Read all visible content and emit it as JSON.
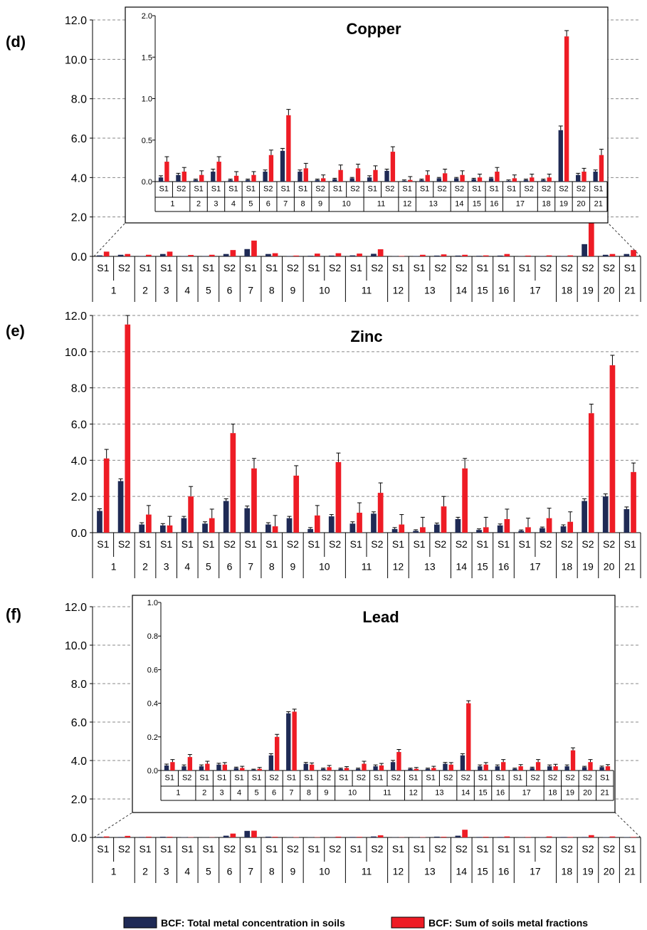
{
  "legend": {
    "total": "BCF: Total metal concentration in soils",
    "sum": "BCF: Sum of soils metal fractions"
  },
  "colors": {
    "total": "#1f2a55",
    "sum": "#ee1c25"
  },
  "chart_data": [
    {
      "panel": "(d)",
      "title": "Copper",
      "type": "bar",
      "ylim": [
        0,
        12
      ],
      "yticks": [
        "0.0",
        "2.0",
        "4.0",
        "6.0",
        "8.0",
        "10.0",
        "12.0"
      ],
      "samples": [
        "S1",
        "S2",
        "S1",
        "S1",
        "S1",
        "S1",
        "S2",
        "S1",
        "S1",
        "S2",
        "S1",
        "S2",
        "S1",
        "S2",
        "S1",
        "S1",
        "S2",
        "S2",
        "S1",
        "S1",
        "S1",
        "S2",
        "S2",
        "S2",
        "S2",
        "S1"
      ],
      "groups": [
        {
          "label": "1",
          "span": 2
        },
        {
          "label": "2",
          "span": 1
        },
        {
          "label": "3",
          "span": 1
        },
        {
          "label": "4",
          "span": 1
        },
        {
          "label": "5",
          "span": 1
        },
        {
          "label": "6",
          "span": 1
        },
        {
          "label": "7",
          "span": 1
        },
        {
          "label": "8",
          "span": 1
        },
        {
          "label": "9",
          "span": 1
        },
        {
          "label": "10",
          "span": 2
        },
        {
          "label": "11",
          "span": 2
        },
        {
          "label": "12",
          "span": 1
        },
        {
          "label": "13",
          "span": 2
        },
        {
          "label": "14",
          "span": 1
        },
        {
          "label": "15",
          "span": 1
        },
        {
          "label": "16",
          "span": 1
        },
        {
          "label": "17",
          "span": 2
        },
        {
          "label": "18",
          "span": 1
        },
        {
          "label": "19",
          "span": 1
        },
        {
          "label": "20",
          "span": 1
        },
        {
          "label": "21",
          "span": 1
        }
      ],
      "series": [
        {
          "name": "BCF: Total metal concentration in soils",
          "values": [
            0.05,
            0.08,
            0.02,
            0.12,
            0.02,
            0.02,
            0.12,
            0.37,
            0.12,
            0.02,
            0.03,
            0.04,
            0.05,
            0.13,
            0.01,
            0.02,
            0.04,
            0.04,
            0.03,
            0.04,
            0.01,
            0.02,
            0.02,
            0.62,
            0.08,
            0.12
          ],
          "err": [
            0.02,
            0.02,
            0.01,
            0.03,
            0.01,
            0.01,
            0.02,
            0.03,
            0.02,
            0.01,
            0.01,
            0.01,
            0.02,
            0.02,
            0.01,
            0.01,
            0.01,
            0.01,
            0.01,
            0.01,
            0.01,
            0.01,
            0.01,
            0.05,
            0.02,
            0.02
          ]
        },
        {
          "name": "BCF: Sum of soils metal fractions",
          "values": [
            0.24,
            0.12,
            0.08,
            0.24,
            0.07,
            0.08,
            0.32,
            0.8,
            0.16,
            0.04,
            0.14,
            0.16,
            0.14,
            0.36,
            0.02,
            0.08,
            0.1,
            0.08,
            0.05,
            0.12,
            0.04,
            0.05,
            0.05,
            1.75,
            0.12,
            0.32
          ],
          "err": [
            0.06,
            0.05,
            0.05,
            0.06,
            0.05,
            0.04,
            0.06,
            0.07,
            0.06,
            0.04,
            0.06,
            0.05,
            0.05,
            0.06,
            0.04,
            0.05,
            0.05,
            0.05,
            0.04,
            0.05,
            0.04,
            0.04,
            0.04,
            0.07,
            0.04,
            0.07
          ]
        }
      ],
      "inset": {
        "ylim": [
          0,
          2
        ],
        "yticks": [
          "0.0",
          "0.5",
          "1.0",
          "1.5",
          "2.0"
        ]
      }
    },
    {
      "panel": "(e)",
      "title": "Zinc",
      "type": "bar",
      "ylim": [
        0,
        12
      ],
      "yticks": [
        "0.0",
        "2.0",
        "4.0",
        "6.0",
        "8.0",
        "10.0",
        "12.0"
      ],
      "samples": [
        "S1",
        "S2",
        "S1",
        "S1",
        "S1",
        "S1",
        "S2",
        "S1",
        "S1",
        "S2",
        "S1",
        "S2",
        "S1",
        "S2",
        "S1",
        "S1",
        "S2",
        "S2",
        "S1",
        "S1",
        "S1",
        "S2",
        "S2",
        "S2",
        "S2",
        "S1"
      ],
      "groups": [
        {
          "label": "1",
          "span": 2
        },
        {
          "label": "2",
          "span": 1
        },
        {
          "label": "3",
          "span": 1
        },
        {
          "label": "4",
          "span": 1
        },
        {
          "label": "5",
          "span": 1
        },
        {
          "label": "6",
          "span": 1
        },
        {
          "label": "7",
          "span": 1
        },
        {
          "label": "8",
          "span": 1
        },
        {
          "label": "9",
          "span": 1
        },
        {
          "label": "10",
          "span": 2
        },
        {
          "label": "11",
          "span": 2
        },
        {
          "label": "12",
          "span": 1
        },
        {
          "label": "13",
          "span": 2
        },
        {
          "label": "14",
          "span": 1
        },
        {
          "label": "15",
          "span": 1
        },
        {
          "label": "16",
          "span": 1
        },
        {
          "label": "17",
          "span": 2
        },
        {
          "label": "18",
          "span": 1
        },
        {
          "label": "19",
          "span": 1
        },
        {
          "label": "20",
          "span": 1
        },
        {
          "label": "21",
          "span": 1
        }
      ],
      "series": [
        {
          "name": "BCF: Total metal concentration in soils",
          "values": [
            1.2,
            2.85,
            0.45,
            0.4,
            0.8,
            0.5,
            1.75,
            1.35,
            0.45,
            0.8,
            0.2,
            0.9,
            0.5,
            1.05,
            0.2,
            0.1,
            0.45,
            0.75,
            0.15,
            0.4,
            0.1,
            0.25,
            0.35,
            1.75,
            2.0,
            1.3
          ],
          "err": [
            0.12,
            0.12,
            0.1,
            0.1,
            0.1,
            0.1,
            0.12,
            0.12,
            0.1,
            0.1,
            0.08,
            0.1,
            0.1,
            0.1,
            0.08,
            0.06,
            0.08,
            0.1,
            0.06,
            0.08,
            0.05,
            0.06,
            0.08,
            0.12,
            0.14,
            0.12
          ]
        },
        {
          "name": "BCF: Sum of soils metal fractions",
          "values": [
            4.1,
            11.5,
            1.0,
            0.4,
            2.0,
            0.8,
            5.5,
            3.55,
            0.35,
            3.15,
            0.95,
            3.9,
            1.1,
            2.2,
            0.45,
            0.3,
            1.45,
            3.55,
            0.3,
            0.75,
            0.3,
            0.8,
            0.6,
            6.6,
            9.25,
            3.35
          ],
          "err": [
            0.5,
            0.5,
            0.5,
            0.5,
            0.55,
            0.5,
            0.5,
            0.55,
            0.6,
            0.55,
            0.55,
            0.5,
            0.55,
            0.55,
            0.55,
            0.55,
            0.55,
            0.55,
            0.55,
            0.55,
            0.5,
            0.55,
            0.55,
            0.5,
            0.55,
            0.5
          ]
        }
      ]
    },
    {
      "panel": "(f)",
      "title": "Lead",
      "type": "bar",
      "ylim": [
        0,
        12
      ],
      "yticks": [
        "0.0",
        "2.0",
        "4.0",
        "6.0",
        "8.0",
        "10.0",
        "12.0"
      ],
      "samples": [
        "S1",
        "S2",
        "S1",
        "S1",
        "S1",
        "S1",
        "S2",
        "S1",
        "S1",
        "S2",
        "S1",
        "S2",
        "S1",
        "S2",
        "S1",
        "S1",
        "S2",
        "S2",
        "S1",
        "S1",
        "S1",
        "S2",
        "S2",
        "S2",
        "S2",
        "S1"
      ],
      "groups": [
        {
          "label": "1",
          "span": 2
        },
        {
          "label": "2",
          "span": 1
        },
        {
          "label": "3",
          "span": 1
        },
        {
          "label": "4",
          "span": 1
        },
        {
          "label": "5",
          "span": 1
        },
        {
          "label": "6",
          "span": 1
        },
        {
          "label": "7",
          "span": 1
        },
        {
          "label": "8",
          "span": 1
        },
        {
          "label": "9",
          "span": 1
        },
        {
          "label": "10",
          "span": 2
        },
        {
          "label": "11",
          "span": 2
        },
        {
          "label": "12",
          "span": 1
        },
        {
          "label": "13",
          "span": 2
        },
        {
          "label": "14",
          "span": 1
        },
        {
          "label": "15",
          "span": 1
        },
        {
          "label": "16",
          "span": 1
        },
        {
          "label": "17",
          "span": 2
        },
        {
          "label": "18",
          "span": 1
        },
        {
          "label": "19",
          "span": 1
        },
        {
          "label": "20",
          "span": 1
        },
        {
          "label": "21",
          "span": 1
        }
      ],
      "series": [
        {
          "name": "BCF: Total metal concentration in soils",
          "values": [
            0.03,
            0.025,
            0.025,
            0.035,
            0.015,
            0.005,
            0.09,
            0.34,
            0.04,
            0.01,
            0.01,
            0.01,
            0.025,
            0.05,
            0.01,
            0.01,
            0.04,
            0.09,
            0.025,
            0.025,
            0.01,
            0.015,
            0.025,
            0.025,
            0.02,
            0.02
          ],
          "err": [
            0.008,
            0.008,
            0.008,
            0.008,
            0.005,
            0.003,
            0.01,
            0.01,
            0.008,
            0.004,
            0.004,
            0.004,
            0.008,
            0.01,
            0.004,
            0.004,
            0.008,
            0.01,
            0.008,
            0.008,
            0.004,
            0.005,
            0.008,
            0.008,
            0.005,
            0.006
          ]
        },
        {
          "name": "BCF: Sum of soils metal fractions",
          "values": [
            0.05,
            0.08,
            0.04,
            0.035,
            0.015,
            0.01,
            0.2,
            0.35,
            0.035,
            0.02,
            0.015,
            0.04,
            0.03,
            0.11,
            0.01,
            0.015,
            0.035,
            0.4,
            0.035,
            0.05,
            0.025,
            0.05,
            0.025,
            0.12,
            0.05,
            0.025
          ],
          "err": [
            0.015,
            0.015,
            0.015,
            0.012,
            0.01,
            0.008,
            0.015,
            0.015,
            0.01,
            0.01,
            0.008,
            0.015,
            0.012,
            0.015,
            0.008,
            0.01,
            0.012,
            0.015,
            0.012,
            0.015,
            0.01,
            0.015,
            0.012,
            0.015,
            0.015,
            0.01
          ]
        }
      ],
      "inset": {
        "ylim": [
          0,
          1
        ],
        "yticks": [
          "0.0",
          "0.2",
          "0.4",
          "0.6",
          "0.8",
          "1.0"
        ]
      }
    }
  ]
}
